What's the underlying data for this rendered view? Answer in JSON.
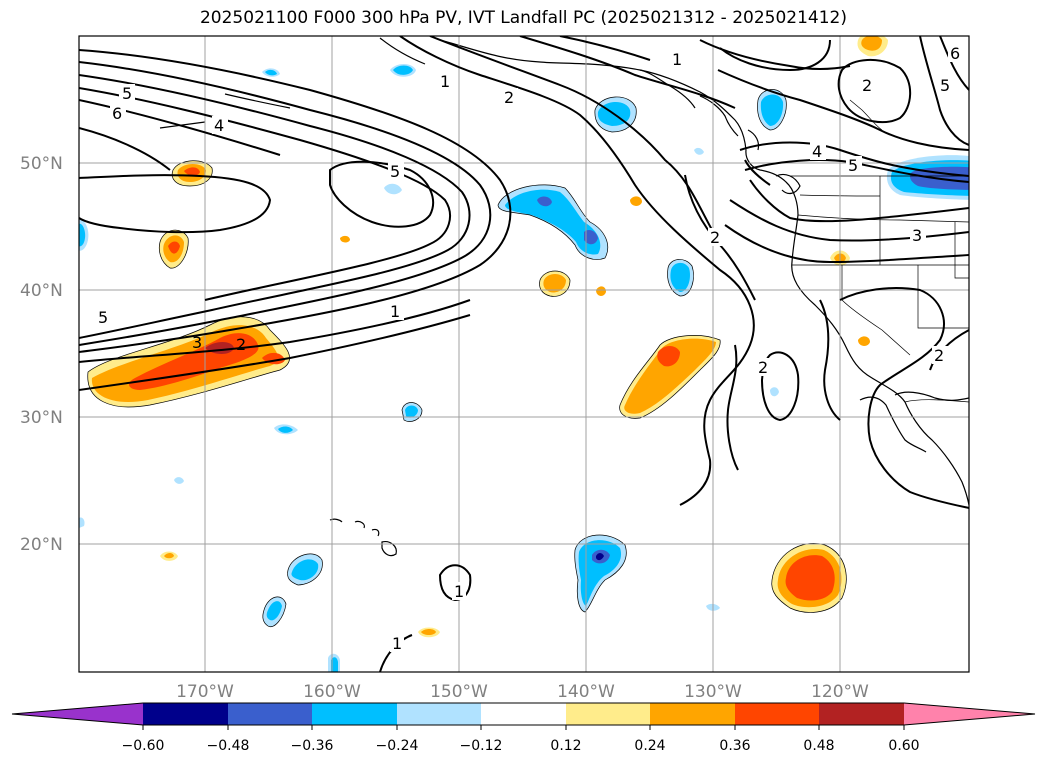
{
  "title": "2025021100 F000 300 hPa PV, IVT Landfall PC (2025021312 - 2025021412)",
  "lat_labels": [
    "50°N",
    "40°N",
    "30°N",
    "20°N"
  ],
  "lon_labels": [
    "170°W",
    "160°W",
    "150°W",
    "140°W",
    "130°W",
    "120°W"
  ],
  "contour_labels": {
    "west_5": "5",
    "west_6": "6",
    "west_4": "4",
    "west_5b": "5",
    "mid_5": "5",
    "mid_1": "1",
    "ne_1": "1",
    "ne_1b": "1",
    "ne_2": "2",
    "jet_3": "3",
    "jet_2": "2",
    "coast_2": "2",
    "coast_4": "4",
    "coast_5": "5",
    "coast_3": "3",
    "offshore_2": "2",
    "top_2": "2",
    "top_5": "5",
    "top_6": "6",
    "south_1": "1",
    "south_1b": "1",
    "sw_2": "2"
  },
  "colorbar": {
    "ticks": [
      "−0.60",
      "−0.48",
      "−0.36",
      "−0.24",
      "−0.12",
      "0.12",
      "0.24",
      "0.36",
      "0.48",
      "0.60"
    ],
    "colors": [
      "#9932cc",
      "#00008b",
      "#3a5fcd",
      "#00bfff",
      "#b0e2ff",
      "#ffffff",
      "#ffec8b",
      "#ffa500",
      "#ff4500",
      "#b22222",
      "#ff82ab"
    ]
  }
}
